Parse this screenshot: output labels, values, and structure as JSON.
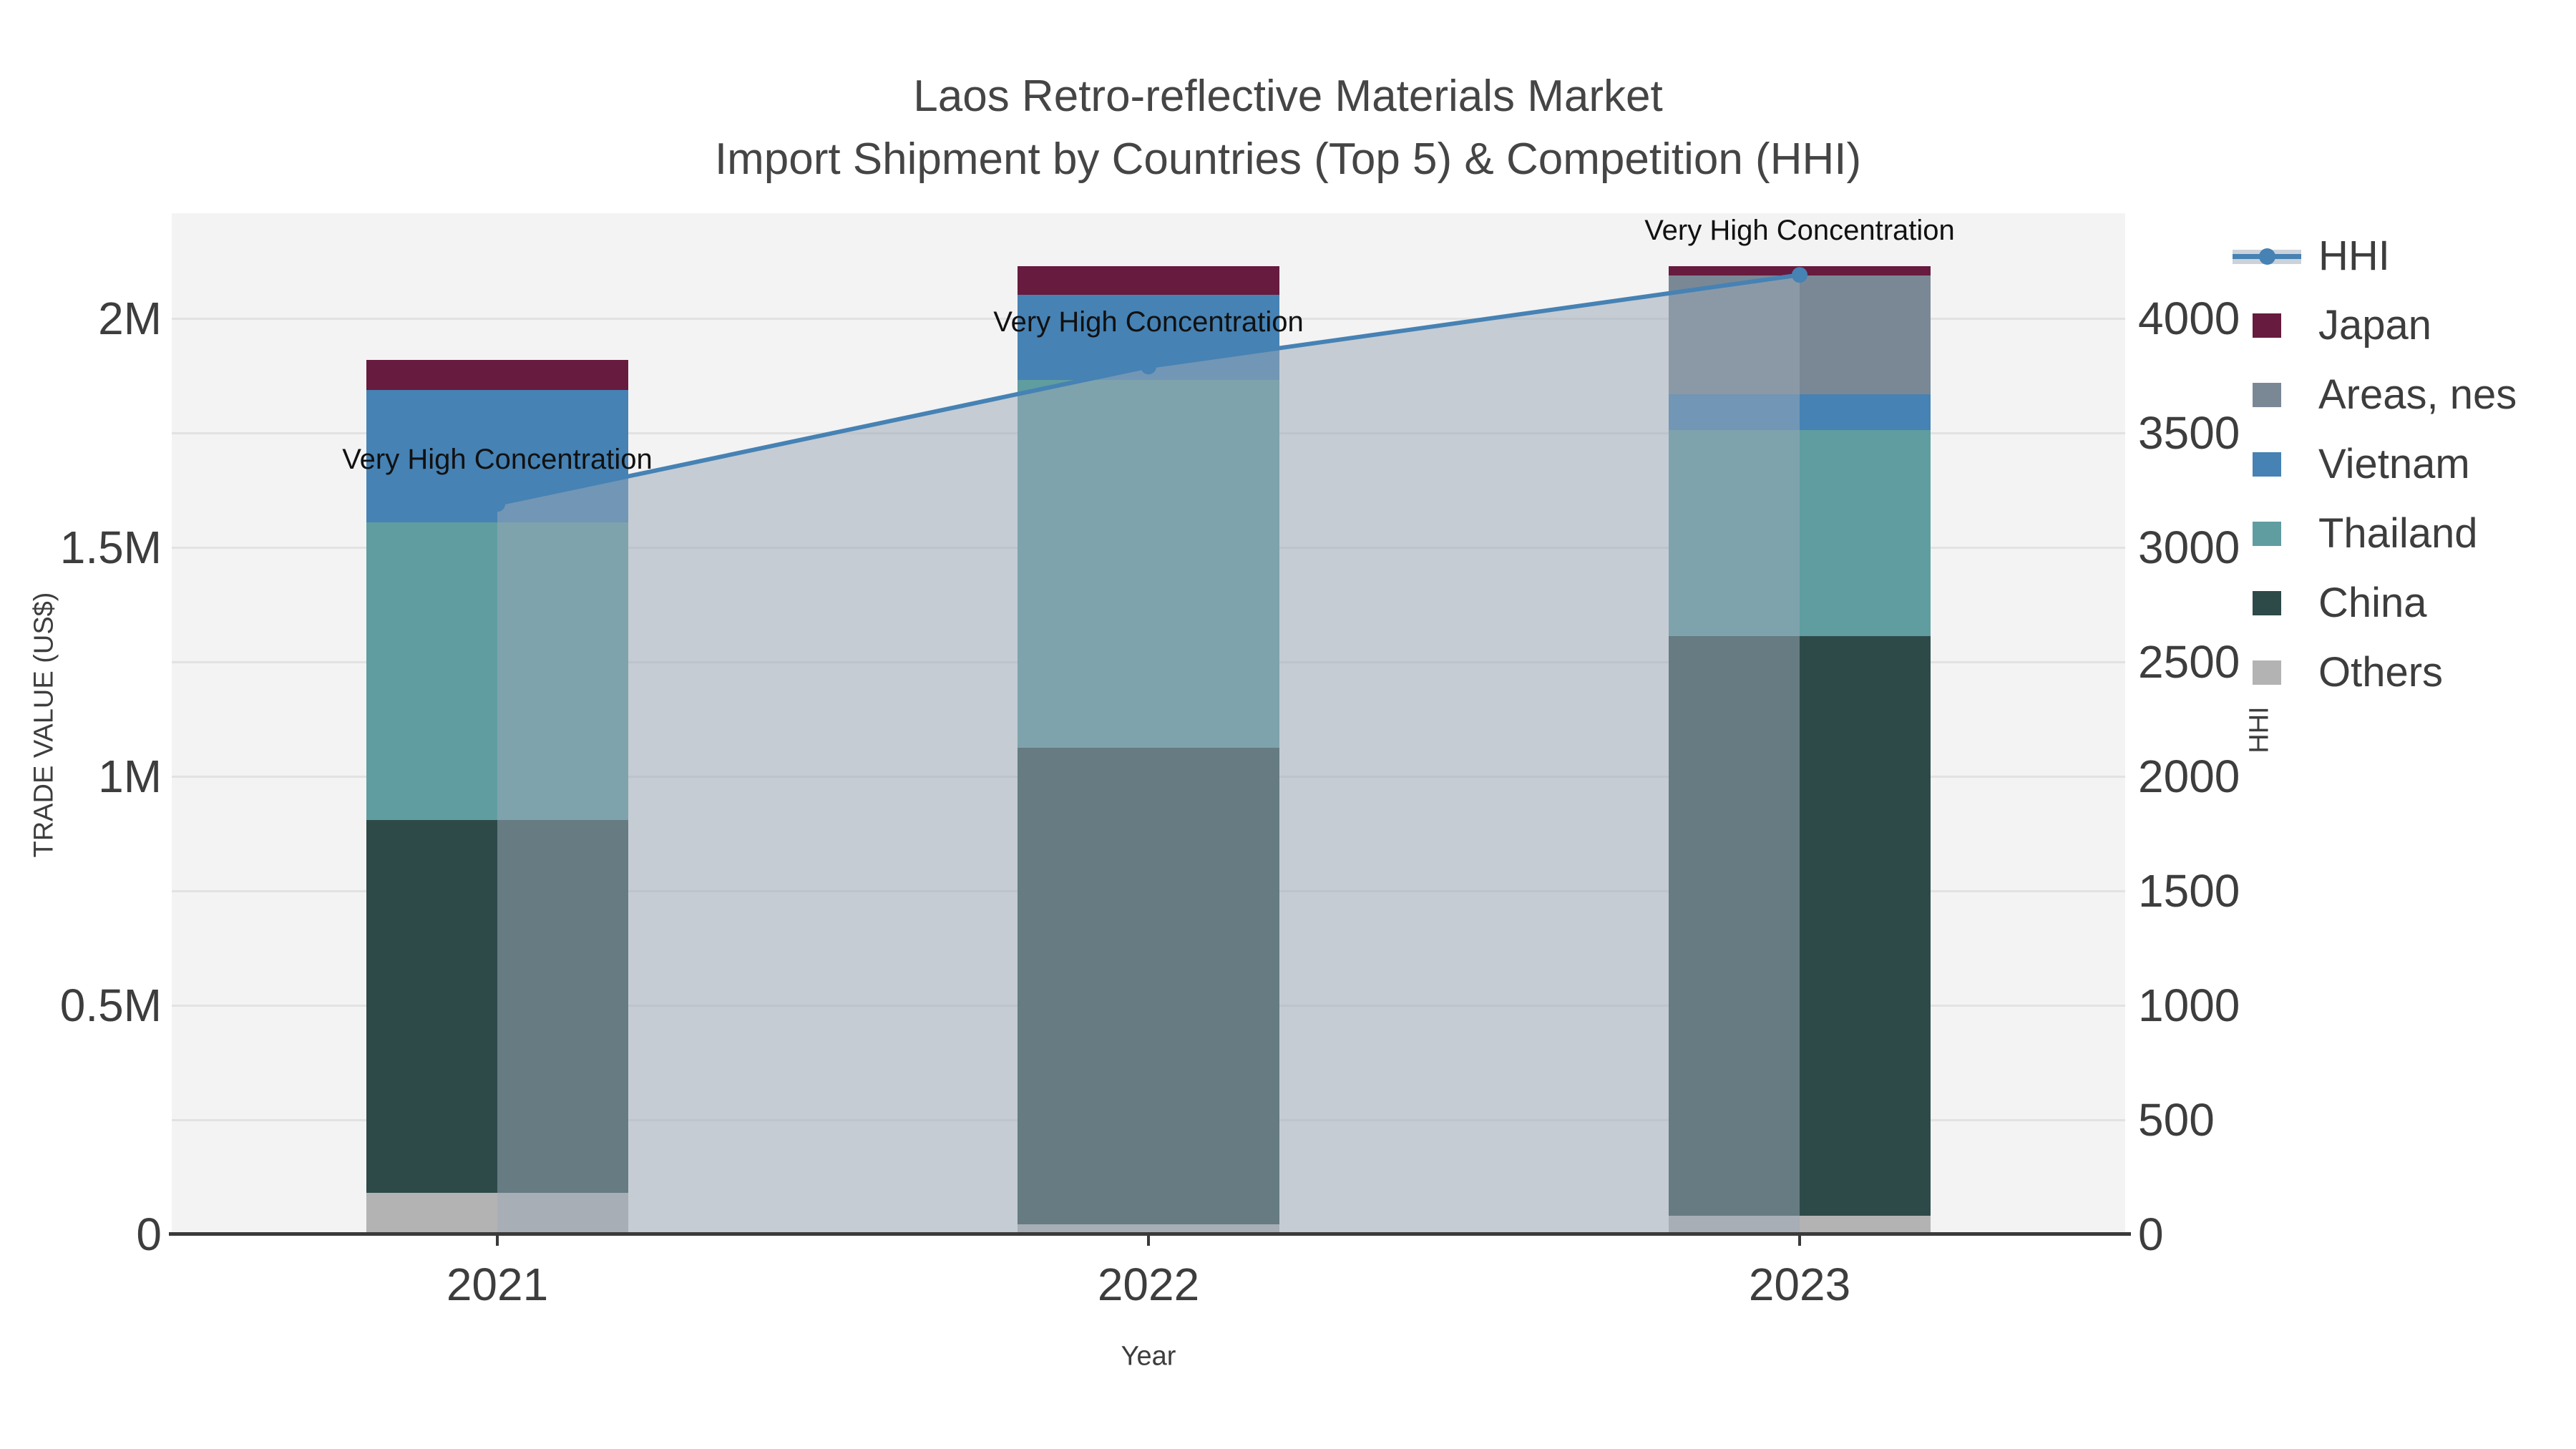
{
  "title": {
    "line1": "Laos Retro-reflective Materials Market",
    "line2": "Import Shipment by Countries (Top 5) & Competition (HHI)"
  },
  "axes": {
    "x": {
      "label": "Year",
      "categories": [
        "2021",
        "2022",
        "2023"
      ]
    },
    "y_left": {
      "label": "TRADE VALUE (US$)",
      "ticks": [
        {
          "label": "0",
          "value": 0
        },
        {
          "label": "0.5M",
          "value": 500000
        },
        {
          "label": "1M",
          "value": 1000000
        },
        {
          "label": "1.5M",
          "value": 1500000
        },
        {
          "label": "2M",
          "value": 2000000
        }
      ]
    },
    "y_right": {
      "label": "HHI",
      "ticks": [
        {
          "label": "0",
          "value": 0
        },
        {
          "label": "500",
          "value": 500
        },
        {
          "label": "1000",
          "value": 1000
        },
        {
          "label": "1500",
          "value": 1500
        },
        {
          "label": "2000",
          "value": 2000
        },
        {
          "label": "2500",
          "value": 2500
        },
        {
          "label": "3000",
          "value": 3000
        },
        {
          "label": "3500",
          "value": 3500
        },
        {
          "label": "4000",
          "value": 4000
        }
      ]
    }
  },
  "legend": {
    "items": [
      {
        "label": "HHI",
        "type": "line",
        "color": "#4682b4"
      },
      {
        "label": "Japan",
        "type": "box",
        "color": "#671b3e"
      },
      {
        "label": "Areas, nes",
        "type": "box",
        "color": "#7a8896"
      },
      {
        "label": "Vietnam",
        "type": "box",
        "color": "#4682b4"
      },
      {
        "label": "Thailand",
        "type": "box",
        "color": "#5f9da1"
      },
      {
        "label": "China",
        "type": "box",
        "color": "#2d4a49"
      },
      {
        "label": "Others",
        "type": "box",
        "color": "#b3b3b3"
      }
    ]
  },
  "colors": {
    "figure_bg": "#ffffff",
    "plot_bg": "#f3f3f3",
    "gridline": "#e2e2e2",
    "axis_line": "#3a3a3a",
    "tick_text": "#3d3d3d",
    "title_text": "#454545",
    "annotation_text": "#111111",
    "hhi_line": "#4682b4",
    "hhi_fill": "rgba(156,168,182,0.52)"
  },
  "chart_data": {
    "type": "combo_stacked_bar_line",
    "title": "Laos Retro-reflective Materials Market — Import Shipment by Countries (Top 5) & Competition (HHI)",
    "categories": [
      "2021",
      "2022",
      "2023"
    ],
    "bar_value_unit": "US$ trade value",
    "y_left_range": [
      0,
      2000000
    ],
    "y_right_range": [
      0,
      4000
    ],
    "grid": "on",
    "legend_position": "right",
    "series": [
      {
        "name": "Others",
        "color": "#b3b3b3",
        "values": [
          90000,
          22000,
          40000
        ]
      },
      {
        "name": "China",
        "color": "#2d4a49",
        "values": [
          814000,
          1040000,
          1266000
        ]
      },
      {
        "name": "Thailand",
        "color": "#5f9da1",
        "values": [
          650000,
          803000,
          450000
        ]
      },
      {
        "name": "Vietnam",
        "color": "#4682b4",
        "values": [
          290000,
          187000,
          78000
        ]
      },
      {
        "name": "Areas, nes",
        "color": "#7a8896",
        "values": [
          0,
          0,
          260000
        ]
      },
      {
        "name": "Japan",
        "color": "#671b3e",
        "values": [
          66000,
          62000,
          20000
        ]
      }
    ],
    "bar_totals": [
      1910000,
      2114000,
      2114000
    ],
    "line": {
      "name": "HHI",
      "axis": "right",
      "color": "#4682b4",
      "fill": "rgba(156,168,182,0.52)",
      "values": [
        3190,
        3790,
        4190
      ]
    },
    "annotations": [
      {
        "text": "Very High Concentration",
        "category_index": 0
      },
      {
        "text": "Very High Concentration",
        "category_index": 1
      },
      {
        "text": "Very High Concentration",
        "category_index": 2
      }
    ]
  }
}
